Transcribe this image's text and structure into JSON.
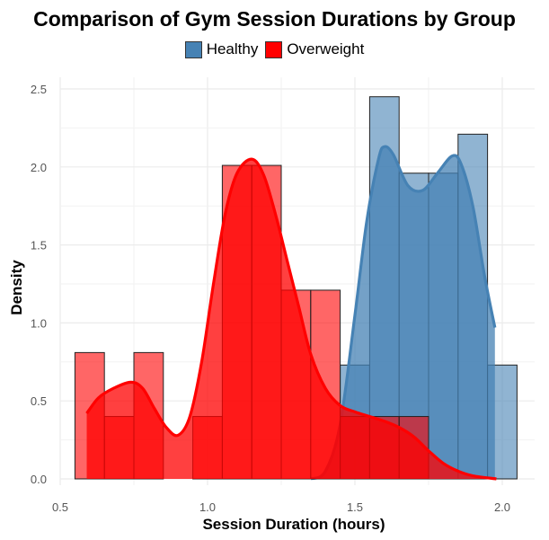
{
  "chart_data": {
    "type": "histogram+density",
    "title": "Comparison of Gym Session Durations by Group",
    "xlabel": "Session Duration (hours)",
    "ylabel": "Density",
    "xlim": [
      0.5,
      2.0
    ],
    "ylim": [
      0,
      2.5
    ],
    "x_ticks": [
      "0.5",
      "1.0",
      "1.5",
      "2.0"
    ],
    "y_ticks": [
      "0.0",
      "0.5",
      "1.0",
      "1.5",
      "2.0",
      "2.5"
    ],
    "grid": true,
    "legend_position": "top",
    "bin_width": 0.1,
    "series": [
      {
        "name": "Healthy",
        "color": "#4682B4",
        "bins": [
          {
            "start": 0.55,
            "end": 0.65,
            "density": 0.0
          },
          {
            "start": 0.65,
            "end": 0.75,
            "density": 0.0
          },
          {
            "start": 0.75,
            "end": 0.85,
            "density": 0.0
          },
          {
            "start": 0.85,
            "end": 0.95,
            "density": 0.0
          },
          {
            "start": 0.95,
            "end": 1.05,
            "density": 0.0
          },
          {
            "start": 1.05,
            "end": 1.15,
            "density": 0.0
          },
          {
            "start": 1.15,
            "end": 1.25,
            "density": 0.0
          },
          {
            "start": 1.25,
            "end": 1.35,
            "density": 0.0
          },
          {
            "start": 1.35,
            "end": 1.45,
            "density": 0.0
          },
          {
            "start": 1.45,
            "end": 1.55,
            "density": 0.73
          },
          {
            "start": 1.55,
            "end": 1.65,
            "density": 2.45
          },
          {
            "start": 1.65,
            "end": 1.75,
            "density": 1.96
          },
          {
            "start": 1.75,
            "end": 1.85,
            "density": 1.96
          },
          {
            "start": 1.85,
            "end": 1.95,
            "density": 2.21
          },
          {
            "start": 1.95,
            "end": 2.05,
            "density": 0.73
          }
        ],
        "density_curve": [
          [
            1.35,
            0.0
          ],
          [
            1.4,
            0.05
          ],
          [
            1.45,
            0.35
          ],
          [
            1.5,
            1.05
          ],
          [
            1.54,
            1.65
          ],
          [
            1.58,
            2.05
          ],
          [
            1.6,
            2.13
          ],
          [
            1.63,
            2.08
          ],
          [
            1.68,
            1.88
          ],
          [
            1.73,
            1.85
          ],
          [
            1.78,
            1.96
          ],
          [
            1.83,
            2.07
          ],
          [
            1.86,
            2.02
          ],
          [
            1.9,
            1.75
          ],
          [
            1.94,
            1.3
          ],
          [
            1.975,
            0.97
          ]
        ]
      },
      {
        "name": "Overweight",
        "color": "#FF0000",
        "bins": [
          {
            "start": 0.55,
            "end": 0.65,
            "density": 0.81
          },
          {
            "start": 0.65,
            "end": 0.75,
            "density": 0.4
          },
          {
            "start": 0.75,
            "end": 0.85,
            "density": 0.81
          },
          {
            "start": 0.85,
            "end": 0.95,
            "density": 0.0
          },
          {
            "start": 0.95,
            "end": 1.05,
            "density": 0.4
          },
          {
            "start": 1.05,
            "end": 1.15,
            "density": 2.01
          },
          {
            "start": 1.15,
            "end": 1.25,
            "density": 2.01
          },
          {
            "start": 1.25,
            "end": 1.35,
            "density": 1.21
          },
          {
            "start": 1.35,
            "end": 1.45,
            "density": 1.21
          },
          {
            "start": 1.45,
            "end": 1.55,
            "density": 0.4
          },
          {
            "start": 1.55,
            "end": 1.65,
            "density": 0.4
          },
          {
            "start": 1.65,
            "end": 1.75,
            "density": 0.4
          },
          {
            "start": 1.75,
            "end": 1.85,
            "density": 0.0
          },
          {
            "start": 1.85,
            "end": 1.95,
            "density": 0.0
          }
        ],
        "density_curve": [
          [
            0.59,
            0.42
          ],
          [
            0.63,
            0.52
          ],
          [
            0.68,
            0.58
          ],
          [
            0.74,
            0.62
          ],
          [
            0.78,
            0.58
          ],
          [
            0.82,
            0.45
          ],
          [
            0.86,
            0.33
          ],
          [
            0.9,
            0.28
          ],
          [
            0.94,
            0.4
          ],
          [
            0.98,
            0.75
          ],
          [
            1.02,
            1.25
          ],
          [
            1.06,
            1.7
          ],
          [
            1.1,
            1.96
          ],
          [
            1.15,
            2.05
          ],
          [
            1.19,
            1.95
          ],
          [
            1.23,
            1.7
          ],
          [
            1.27,
            1.4
          ],
          [
            1.31,
            1.1
          ],
          [
            1.35,
            0.8
          ],
          [
            1.4,
            0.58
          ],
          [
            1.45,
            0.47
          ],
          [
            1.5,
            0.43
          ],
          [
            1.55,
            0.4
          ],
          [
            1.6,
            0.37
          ],
          [
            1.65,
            0.33
          ],
          [
            1.7,
            0.27
          ],
          [
            1.75,
            0.18
          ],
          [
            1.8,
            0.1
          ],
          [
            1.85,
            0.05
          ],
          [
            1.9,
            0.02
          ],
          [
            1.98,
            0.0
          ]
        ]
      }
    ]
  }
}
